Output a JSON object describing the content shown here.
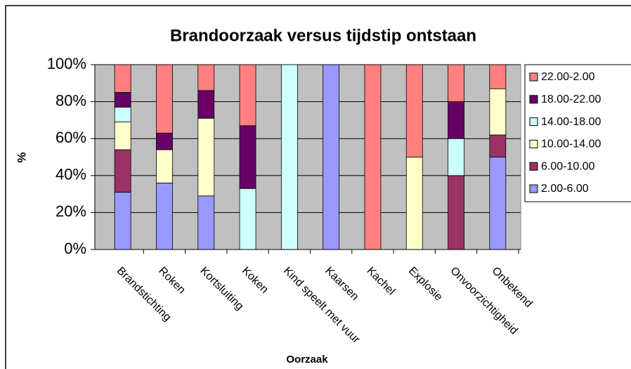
{
  "chart_data": {
    "type": "stacked_bar",
    "title": "Brandoorzaak versus tijdstip ontstaan",
    "x_label": "Oorzaak",
    "y_label": "%",
    "categories": [
      "Brandstichting",
      "Roken",
      "Kortsluiting",
      "Koken",
      "Kind speelt met vuur",
      "Kaarsen",
      "Kachel",
      "Explosie",
      "Onvoorzichtigheid",
      "Onbekend"
    ],
    "series": [
      {
        "name": "2.00-6.00",
        "color": "#9999ff",
        "values": [
          31,
          36,
          29,
          0,
          0,
          100,
          0,
          0,
          0,
          50
        ]
      },
      {
        "name": "6.00-10.00",
        "color": "#993366",
        "values": [
          23,
          0,
          0,
          0,
          0,
          0,
          0,
          0,
          40,
          12
        ]
      },
      {
        "name": "10.00-14.00",
        "color": "#ffffcc",
        "values": [
          15,
          18,
          42,
          0,
          0,
          0,
          0,
          50,
          0,
          25
        ]
      },
      {
        "name": "14.00-18.00",
        "color": "#ccffff",
        "values": [
          8,
          0,
          0,
          33,
          100,
          0,
          0,
          0,
          20,
          0
        ]
      },
      {
        "name": "18.00-22.00",
        "color": "#660066",
        "values": [
          8,
          9,
          15,
          34,
          0,
          0,
          0,
          0,
          20,
          0
        ]
      },
      {
        "name": "22.00-2.00",
        "color": "#ff8080",
        "values": [
          15,
          37,
          14,
          33,
          0,
          0,
          100,
          50,
          20,
          13
        ]
      }
    ],
    "ylim": [
      0,
      100
    ],
    "yticks": [
      {
        "value": 0,
        "label": "0%"
      },
      {
        "value": 20,
        "label": "20%"
      },
      {
        "value": 40,
        "label": "40%"
      },
      {
        "value": 60,
        "label": "60%"
      },
      {
        "value": 80,
        "label": "80%"
      },
      {
        "value": 100,
        "label": "100%"
      }
    ],
    "grid": true,
    "legend": "right"
  }
}
